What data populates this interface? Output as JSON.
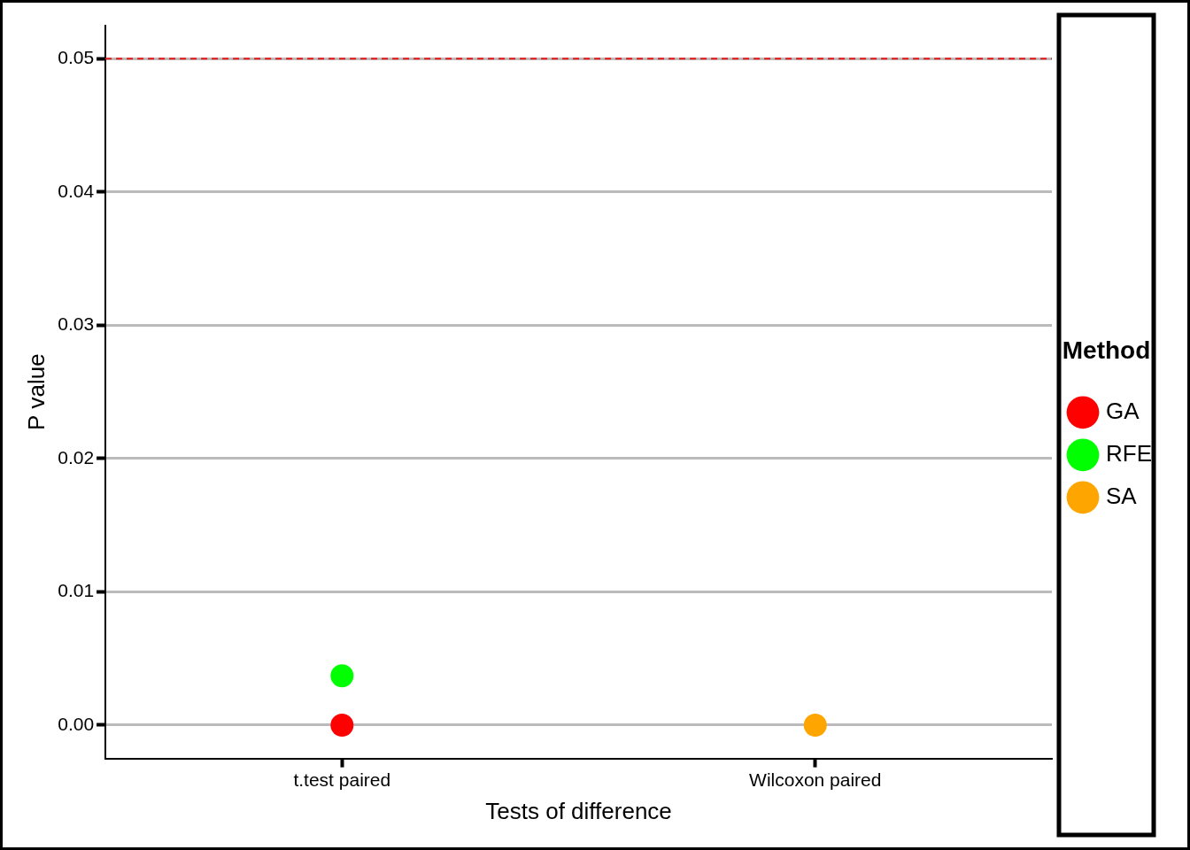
{
  "chart_data": {
    "type": "scatter",
    "x_label": "Tests of difference",
    "y_label": "P value",
    "legend_title": "Method",
    "categories": [
      "t.test paired",
      "Wilcoxon paired"
    ],
    "series": [
      {
        "name": "GA",
        "color": "#ff0000",
        "values": [
          0.0,
          null
        ],
        "marker": "circle"
      },
      {
        "name": "RFE",
        "color": "#00ff00",
        "values": [
          0.0037,
          null
        ],
        "marker": "circle"
      },
      {
        "name": "SA",
        "color": "#ffa500",
        "values": [
          null,
          0.0
        ],
        "marker": "circle"
      }
    ],
    "ylim": [
      -0.0025,
      0.0525
    ],
    "yticks": [
      {
        "value": 0,
        "label": "0.00"
      },
      0.01,
      0.02,
      0.03,
      0.04,
      0.05
    ],
    "reference_line": {
      "value": 0.05,
      "color": "#e41a1c",
      "line_style": "dashed"
    },
    "grid": true,
    "legend": "right"
  }
}
